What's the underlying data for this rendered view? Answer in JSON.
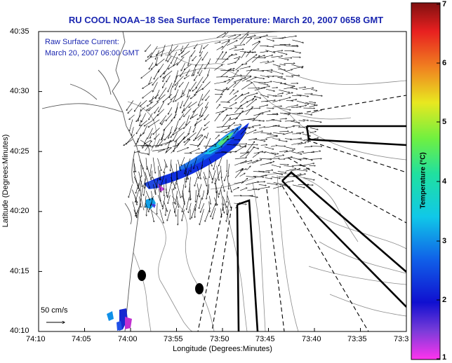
{
  "title": "RU COOL  NOAA–18  Sea Surface Temperature:  March 20, 2007 0658 GMT",
  "current_label": "Raw Surface Current:",
  "current_time": "March 20, 2007 06:00 GMT",
  "scale_label": "50 cm/s",
  "x_axis_label": "Longitude (Degrees:Minutes)",
  "y_axis_label": "Latitude (Degrees:Minutes)",
  "colorbar_label": "Temperature (°C)",
  "x_ticks": [
    "74:10",
    "74:05",
    "74:00",
    "73:55",
    "73:50",
    "73:45",
    "73:40",
    "73:35",
    "73:3"
  ],
  "y_ticks": [
    "40:35",
    "40:30",
    "40:25",
    "40:20",
    "40:15",
    "40:10"
  ],
  "colorbar_ticks": [
    "7",
    "6",
    "5",
    "4",
    "3",
    "2",
    "1"
  ],
  "colors": {
    "title": "#1b27b0",
    "land": "#ffffff",
    "contour": "#808080",
    "vector": "#000000"
  }
}
